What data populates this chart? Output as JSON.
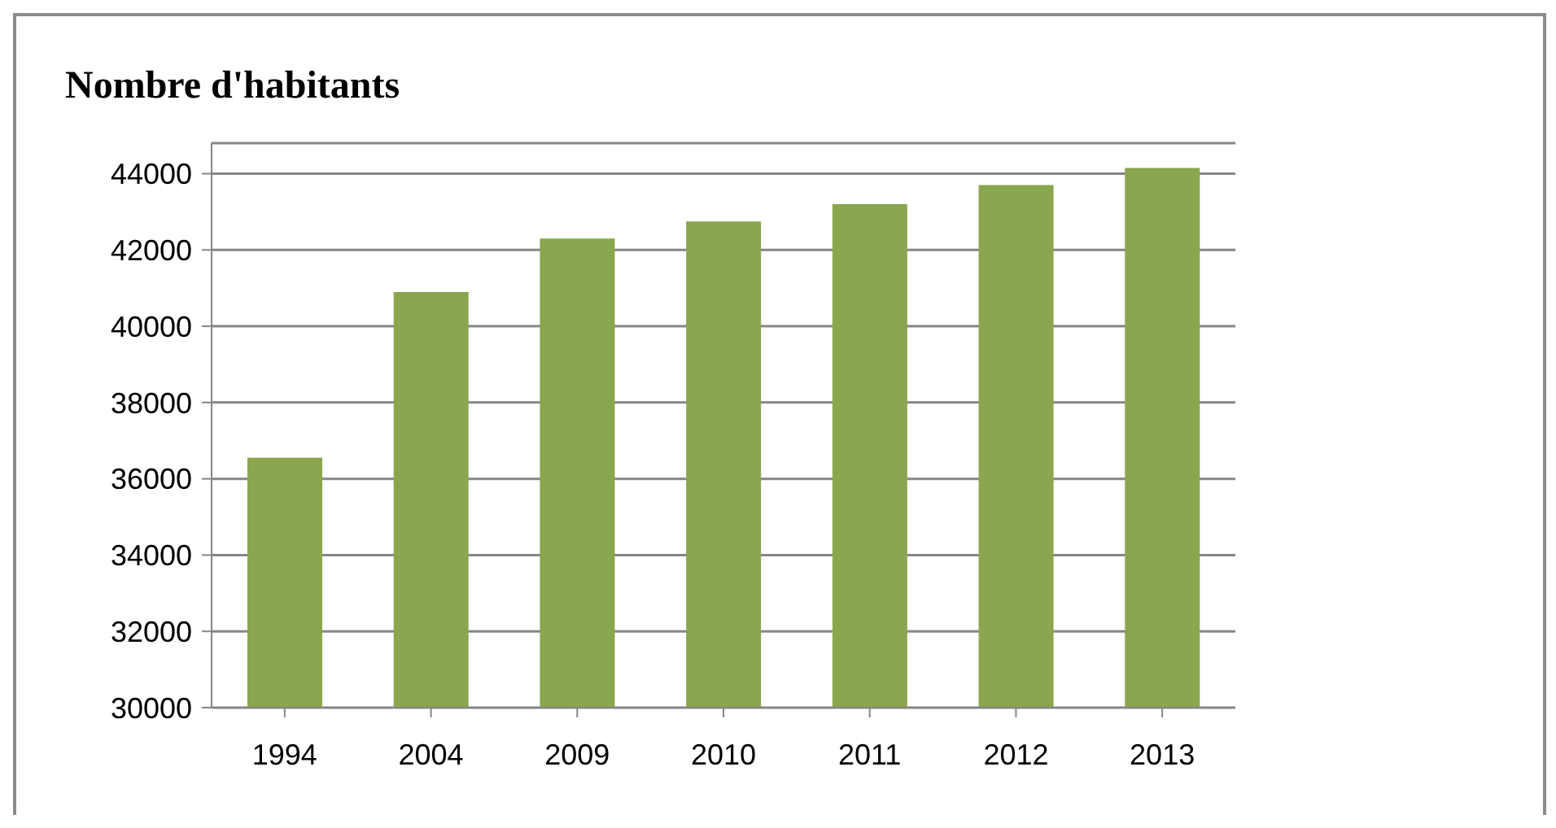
{
  "chart_data": {
    "type": "bar",
    "title": "Nombre d'habitants",
    "categories": [
      "1994",
      "2004",
      "2009",
      "2010",
      "2011",
      "2012",
      "2013"
    ],
    "values": [
      36550,
      40900,
      42300,
      42750,
      43200,
      43700,
      44150
    ],
    "color": "#8aa64e",
    "ylim": [
      30000,
      44800
    ],
    "yticks": [
      30000,
      32000,
      34000,
      36000,
      38000,
      40000,
      42000,
      44000
    ],
    "grid": "y",
    "legend": false
  }
}
